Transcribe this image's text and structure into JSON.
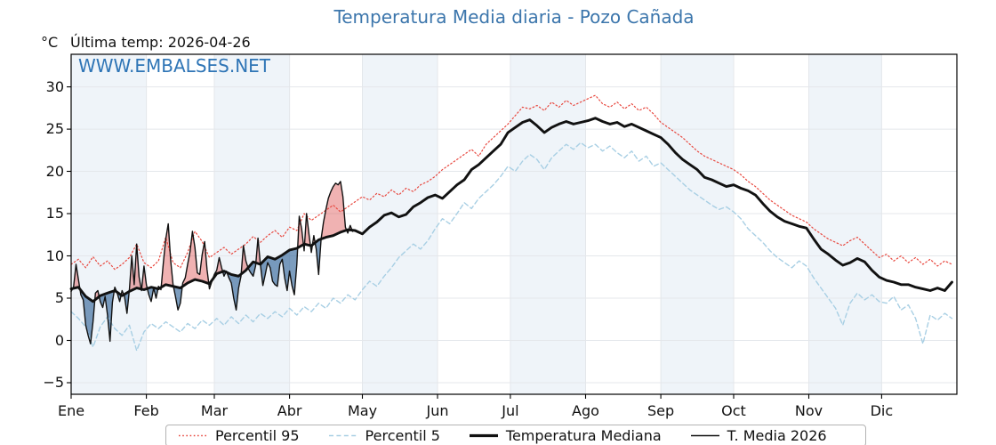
{
  "header": {
    "unit": "°C",
    "last_temp_label": "Última temp: 2026-04-26"
  },
  "watermark": {
    "text": "WWW.EMBALSES.NET",
    "color": "#2f75b6"
  },
  "chart_data": {
    "type": "line",
    "title": "Temperatura Media diaria - Pozo Cañada",
    "title_color": "#3c76ac",
    "xlabel": "",
    "ylabel": "°C",
    "categories": [
      "Ene",
      "Feb",
      "Mar",
      "Abr",
      "May",
      "Jun",
      "Jul",
      "Ago",
      "Sep",
      "Oct",
      "Nov",
      "Dic"
    ],
    "month_start_days": [
      0,
      31,
      59,
      90,
      120,
      151,
      181,
      212,
      243,
      273,
      304,
      334
    ],
    "days_in_year": 365,
    "ylim": [
      -6.37,
      33.85
    ],
    "yticks": [
      -5,
      0,
      5,
      10,
      15,
      20,
      25,
      30
    ],
    "yticklabels": [
      "−5",
      "0",
      "5",
      "10",
      "15",
      "20",
      "25",
      "30"
    ],
    "grid": true,
    "grid_color": "#e4e7eb",
    "shaded_months": [
      0,
      2,
      4,
      6,
      8,
      10
    ],
    "band_color": "#eff4f9",
    "fill_above_color": "rgba(222,85,85,0.45)",
    "fill_below_color": "rgba(54,104,155,0.65)",
    "legend_position": "bottom",
    "series": [
      {
        "name": "Percentil 95",
        "color": "#e8483f",
        "style": "dotted",
        "width": 1.2,
        "step": 3,
        "values": [
          9.0,
          9.6,
          8.6,
          9.9,
          8.8,
          9.4,
          8.4,
          9.0,
          9.8,
          11.4,
          9.2,
          8.6,
          9.4,
          12.2,
          9.2,
          8.6,
          10.4,
          12.9,
          11.7,
          9.8,
          10.4,
          11.0,
          10.2,
          10.8,
          11.4,
          12.3,
          11.6,
          12.4,
          13.0,
          12.2,
          13.4,
          13.0,
          15.0,
          14.2,
          14.8,
          15.4,
          16.0,
          15.2,
          15.8,
          16.4,
          17.0,
          16.6,
          17.4,
          17.0,
          17.8,
          17.2,
          18.0,
          17.6,
          18.4,
          18.8,
          19.4,
          20.2,
          20.8,
          21.4,
          22.0,
          22.6,
          21.8,
          23.2,
          24.0,
          24.8,
          25.6,
          26.6,
          27.6,
          27.4,
          27.8,
          27.2,
          28.2,
          27.6,
          28.4,
          27.8,
          28.2,
          28.6,
          29.0,
          28.0,
          27.6,
          28.2,
          27.4,
          28.0,
          27.2,
          27.6,
          26.8,
          25.8,
          25.2,
          24.6,
          24.0,
          23.2,
          22.4,
          21.8,
          21.4,
          21.0,
          20.6,
          20.2,
          19.6,
          18.8,
          18.2,
          17.4,
          16.6,
          16.0,
          15.4,
          14.8,
          14.4,
          14.0,
          13.2,
          12.6,
          12.0,
          11.6,
          11.2,
          11.8,
          12.2,
          11.4,
          10.6,
          9.8,
          10.2,
          9.4,
          10.0,
          9.2,
          9.8,
          9.0,
          9.6,
          8.8,
          9.4,
          9.0
        ]
      },
      {
        "name": "Percentil 5",
        "color": "#a8cfe4",
        "style": "dashed",
        "width": 1.4,
        "step": 3,
        "values": [
          3.4,
          2.6,
          1.6,
          -0.8,
          1.6,
          2.8,
          1.4,
          0.6,
          1.8,
          -1.2,
          1.0,
          2.0,
          1.4,
          2.2,
          1.6,
          1.0,
          2.0,
          1.4,
          2.4,
          1.8,
          2.6,
          1.8,
          2.8,
          2.0,
          3.0,
          2.2,
          3.2,
          2.6,
          3.4,
          2.8,
          3.8,
          3.0,
          4.0,
          3.4,
          4.4,
          3.8,
          5.0,
          4.4,
          5.4,
          4.8,
          6.0,
          7.0,
          6.4,
          7.6,
          8.6,
          9.8,
          10.6,
          11.4,
          10.8,
          11.8,
          13.2,
          14.4,
          13.8,
          15.0,
          16.3,
          15.6,
          16.8,
          17.6,
          18.4,
          19.4,
          20.6,
          20.0,
          21.2,
          22.0,
          21.4,
          20.2,
          21.6,
          22.4,
          23.2,
          22.6,
          23.4,
          22.8,
          23.2,
          22.4,
          23.0,
          22.2,
          21.6,
          22.4,
          21.2,
          21.8,
          20.6,
          21.0,
          20.2,
          19.4,
          18.6,
          17.8,
          17.2,
          16.6,
          16.0,
          15.5,
          15.8,
          15.2,
          14.4,
          13.2,
          12.4,
          11.6,
          10.6,
          9.8,
          9.2,
          8.6,
          9.4,
          8.8,
          7.4,
          6.2,
          5.0,
          3.8,
          1.8,
          4.4,
          5.6,
          4.8,
          5.4,
          4.6,
          4.4,
          5.2,
          3.6,
          4.2,
          2.6,
          -0.4,
          3.0,
          2.4,
          3.2,
          2.6
        ]
      },
      {
        "name": "Temperatura Mediana",
        "color": "#111111",
        "style": "solid",
        "width": 2.9,
        "step": 3,
        "values": [
          6.1,
          6.3,
          5.2,
          4.6,
          5.3,
          5.6,
          5.9,
          5.3,
          5.8,
          6.2,
          6.0,
          6.3,
          6.1,
          6.6,
          6.4,
          6.2,
          6.8,
          7.2,
          7.0,
          6.7,
          7.9,
          8.2,
          7.8,
          7.6,
          8.3,
          9.3,
          9.0,
          9.9,
          9.6,
          10.1,
          10.7,
          10.9,
          11.4,
          11.2,
          11.9,
          12.2,
          12.4,
          12.8,
          13.1,
          13.0,
          12.6,
          13.4,
          14.0,
          14.8,
          15.1,
          14.6,
          14.9,
          15.8,
          16.3,
          16.9,
          17.2,
          16.8,
          17.6,
          18.4,
          19.0,
          20.2,
          20.8,
          21.6,
          22.4,
          23.2,
          24.6,
          25.2,
          25.8,
          26.1,
          25.4,
          24.6,
          25.2,
          25.6,
          25.9,
          25.6,
          25.8,
          26.0,
          26.3,
          25.9,
          25.6,
          25.8,
          25.3,
          25.6,
          25.2,
          24.8,
          24.4,
          24.0,
          23.2,
          22.2,
          21.4,
          20.8,
          20.2,
          19.3,
          19.0,
          18.6,
          18.2,
          18.4,
          18.0,
          17.7,
          17.2,
          16.2,
          15.3,
          14.6,
          14.1,
          13.8,
          13.5,
          13.3,
          12.0,
          10.8,
          10.2,
          9.5,
          8.9,
          9.2,
          9.7,
          9.3,
          8.3,
          7.5,
          7.1,
          6.9,
          6.6,
          6.6,
          6.3,
          6.1,
          5.9,
          6.2,
          5.9,
          6.9
        ]
      },
      {
        "name": "T. Media 2026",
        "color": "#111111",
        "style": "solid",
        "width": 1.4,
        "step": 1,
        "values": [
          5.8,
          6.3,
          9.0,
          7.2,
          5.4,
          4.8,
          1.8,
          0.6,
          -0.4,
          2.2,
          5.6,
          5.9,
          4.6,
          3.9,
          5.2,
          3.0,
          -0.1,
          4.5,
          6.3,
          5.6,
          4.6,
          5.9,
          5.2,
          3.2,
          6.0,
          10.0,
          6.6,
          11.4,
          7.5,
          5.9,
          8.8,
          6.6,
          5.4,
          4.6,
          6.2,
          5.0,
          6.4,
          6.0,
          9.2,
          12.0,
          13.8,
          9.5,
          6.6,
          5.2,
          3.6,
          4.4,
          6.8,
          7.4,
          9.0,
          10.5,
          12.9,
          11.0,
          8.0,
          7.8,
          10.2,
          11.7,
          8.4,
          6.1,
          7.0,
          7.8,
          8.3,
          9.8,
          8.6,
          7.6,
          8.2,
          7.4,
          6.8,
          5.0,
          3.6,
          6.2,
          7.6,
          11.2,
          9.4,
          8.5,
          8.0,
          7.6,
          8.8,
          12.1,
          9.0,
          6.5,
          7.8,
          9.2,
          8.6,
          7.0,
          6.6,
          6.4,
          9.0,
          9.6,
          7.4,
          5.9,
          8.2,
          6.5,
          5.4,
          9.0,
          14.7,
          13.2,
          10.6,
          15.0,
          12.6,
          10.4,
          12.4,
          10.8,
          7.8,
          12.0,
          14.0,
          15.5,
          16.8,
          17.6,
          18.2,
          18.6,
          18.4,
          18.8,
          17.0,
          13.4,
          12.7,
          13.6,
          12.9
        ]
      }
    ]
  }
}
